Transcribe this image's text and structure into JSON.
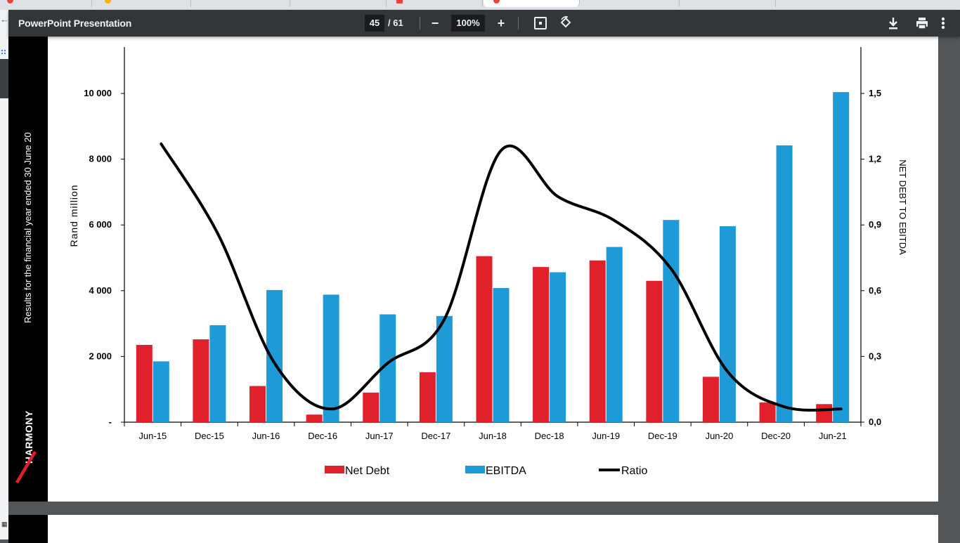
{
  "toolbar": {
    "title": "PowerPoint Presentation",
    "page_current": "45",
    "page_total": "/ 61",
    "zoom": "100%",
    "zoom_out_label": "−",
    "zoom_in_label": "+"
  },
  "slide": {
    "side_text": "Results for the financial year ended 30 June 20",
    "logo_text": "HARMONY",
    "colors": {
      "net_debt": "#e0202a",
      "ebitda": "#1e9ad6",
      "ratio": "#000000"
    }
  },
  "chart_data": {
    "type": "bar",
    "categories": [
      "Jun-15",
      "Dec-15",
      "Jun-16",
      "Dec-16",
      "Jun-17",
      "Dec-17",
      "Jun-18",
      "Dec-18",
      "Jun-19",
      "Dec-19",
      "Jun-20",
      "Dec-20",
      "Jun-21"
    ],
    "series": [
      {
        "name": "Net Debt",
        "type": "bar",
        "axis": "left",
        "color": "#e0202a",
        "values": [
          2350,
          2520,
          1100,
          230,
          900,
          1520,
          5050,
          4720,
          4920,
          4300,
          1380,
          600,
          550
        ]
      },
      {
        "name": "EBITDA",
        "type": "bar",
        "axis": "left",
        "color": "#1e9ad6",
        "values": [
          1850,
          2950,
          4020,
          3880,
          3280,
          3230,
          4080,
          4560,
          5330,
          6150,
          5960,
          8420,
          10040
        ]
      },
      {
        "name": "Ratio",
        "type": "line",
        "axis": "right",
        "color": "#000000",
        "values": [
          1.27,
          0.86,
          0.27,
          0.06,
          0.27,
          0.47,
          1.24,
          1.03,
          0.92,
          0.7,
          0.23,
          0.07,
          0.06
        ]
      }
    ],
    "ylabel": "Rand million",
    "y2label": "NET DEBT TO EBITDA",
    "ylim": [
      0,
      10000
    ],
    "yticks": [
      "-",
      "2 000",
      "4 000",
      "6 000",
      "8 000",
      "10 000"
    ],
    "ytick_values": [
      0,
      2000,
      4000,
      6000,
      8000,
      10000
    ],
    "y2lim": [
      0,
      1.5
    ],
    "y2ticks": [
      "0,0",
      "0,3",
      "0,6",
      "0,9",
      "1,2",
      "1,5"
    ],
    "y2tick_values": [
      0,
      0.3,
      0.6,
      0.9,
      1.2,
      1.5
    ],
    "legend": [
      "Net Debt",
      "EBITDA",
      "Ratio"
    ],
    "legend_position": "bottom",
    "grid": false
  }
}
